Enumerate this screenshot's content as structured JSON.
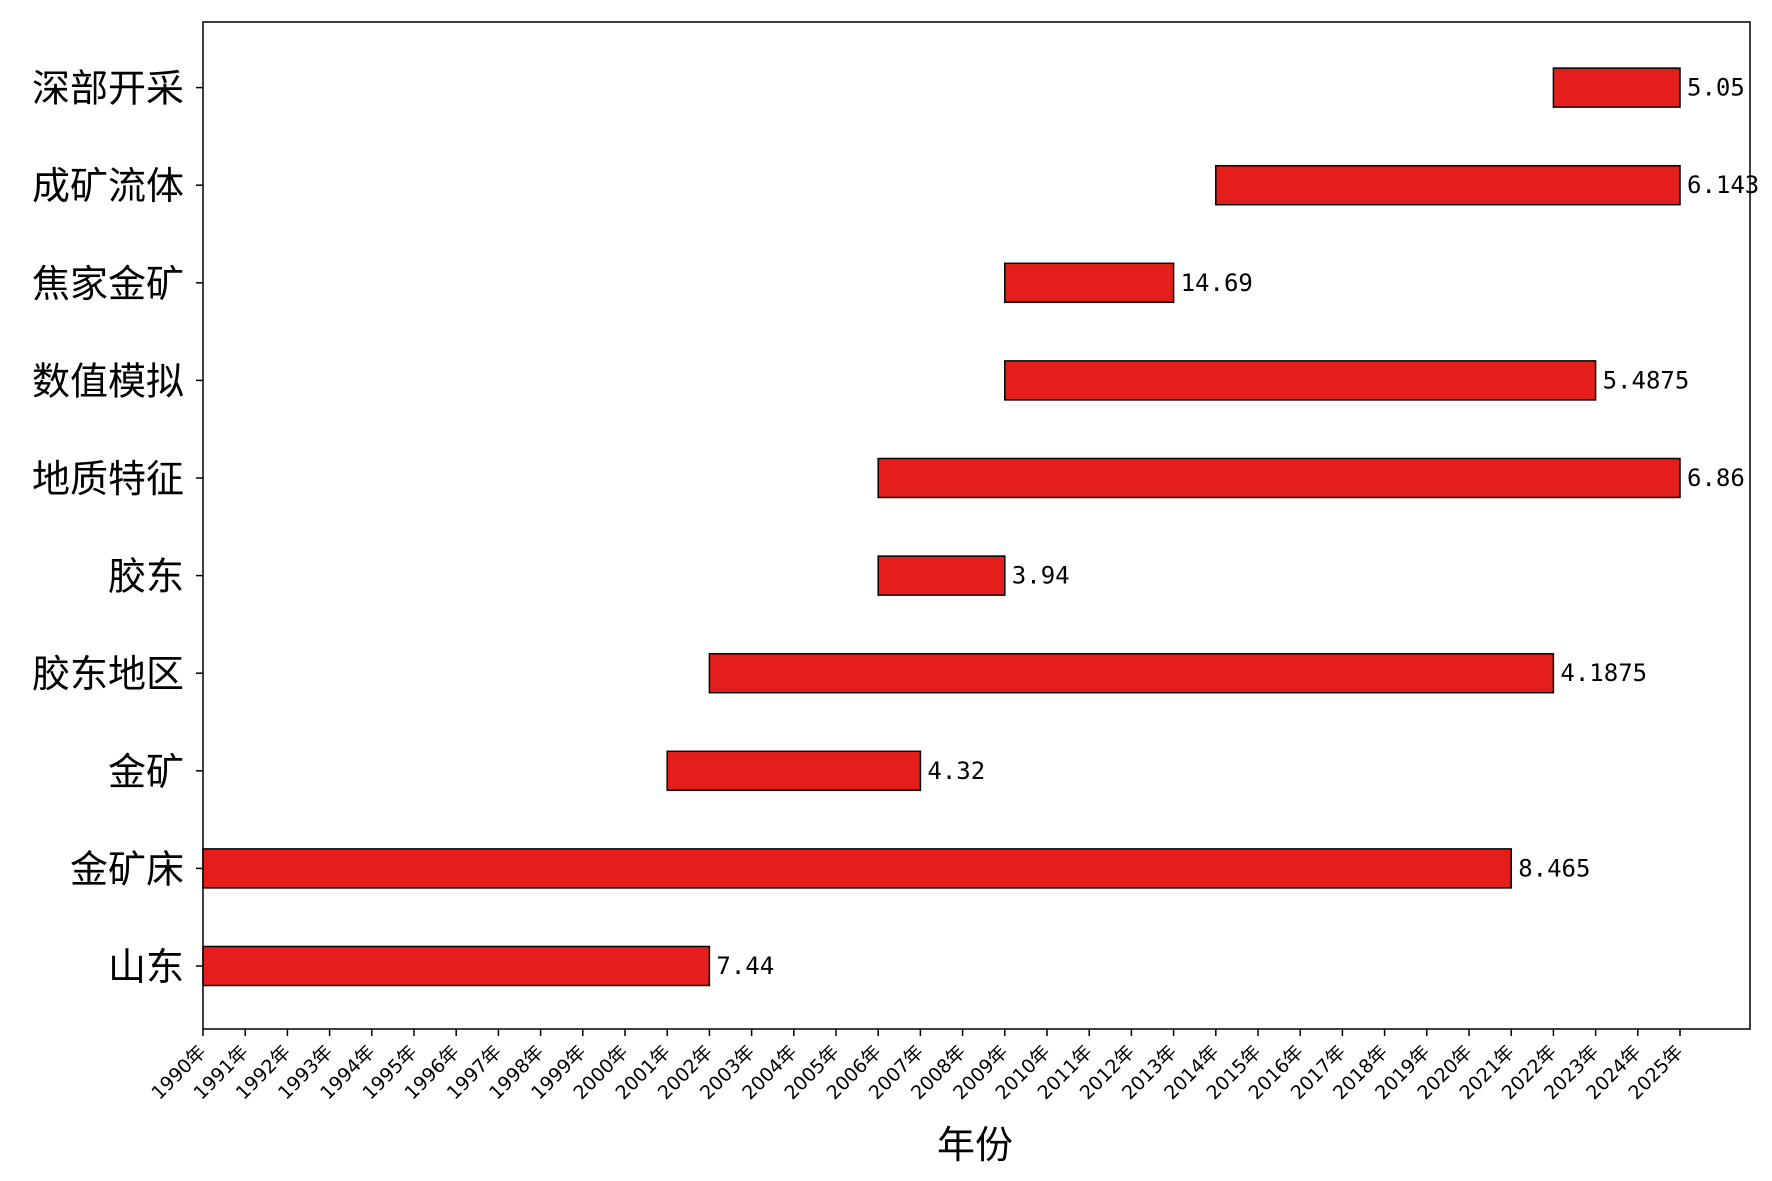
{
  "chart_data": {
    "type": "bar",
    "orientation": "horizontal-range",
    "title": "",
    "xlabel": "年份",
    "ylabel": "",
    "x_ticks": [
      "1990年",
      "1991年",
      "1992年",
      "1993年",
      "1994年",
      "1995年",
      "1996年",
      "1997年",
      "1998年",
      "1999年",
      "2000年",
      "2001年",
      "2002年",
      "2003年",
      "2004年",
      "2005年",
      "2006年",
      "2007年",
      "2008年",
      "2009年",
      "2010年",
      "2011年",
      "2012年",
      "2013年",
      "2014年",
      "2015年",
      "2016年",
      "2017年",
      "2018年",
      "2019年",
      "2020年",
      "2021年",
      "2022年",
      "2023年",
      "2024年",
      "2025年"
    ],
    "xlim": [
      1990,
      2026.7
    ],
    "categories": [
      "山东",
      "金矿床",
      "金矿",
      "胶东地区",
      "胶东",
      "地质特征",
      "数值模拟",
      "焦家金矿",
      "成矿流体",
      "深部开采"
    ],
    "series": [
      {
        "bars": [
          {
            "category": "山东",
            "start": 1990,
            "end": 2002,
            "label": "7.44"
          },
          {
            "category": "金矿床",
            "start": 1990,
            "end": 2021,
            "label": "8.465"
          },
          {
            "category": "金矿",
            "start": 2001,
            "end": 2007,
            "label": "4.32"
          },
          {
            "category": "胶东地区",
            "start": 2002,
            "end": 2022,
            "label": "4.1875"
          },
          {
            "category": "胶东",
            "start": 2006,
            "end": 2009,
            "label": "3.94"
          },
          {
            "category": "地质特征",
            "start": 2006,
            "end": 2025,
            "label": "6.86"
          },
          {
            "category": "数值模拟",
            "start": 2009,
            "end": 2023,
            "label": "5.4875"
          },
          {
            "category": "焦家金矿",
            "start": 2009,
            "end": 2013,
            "label": "14.69"
          },
          {
            "category": "成矿流体",
            "start": 2014,
            "end": 2025,
            "label": "6.143"
          },
          {
            "category": "深部开采",
            "start": 2022,
            "end": 2025,
            "label": "5.05"
          }
        ]
      }
    ],
    "bar_color": "#e41e1a",
    "edge_color": "#000000",
    "grid": false,
    "legend": "none"
  }
}
